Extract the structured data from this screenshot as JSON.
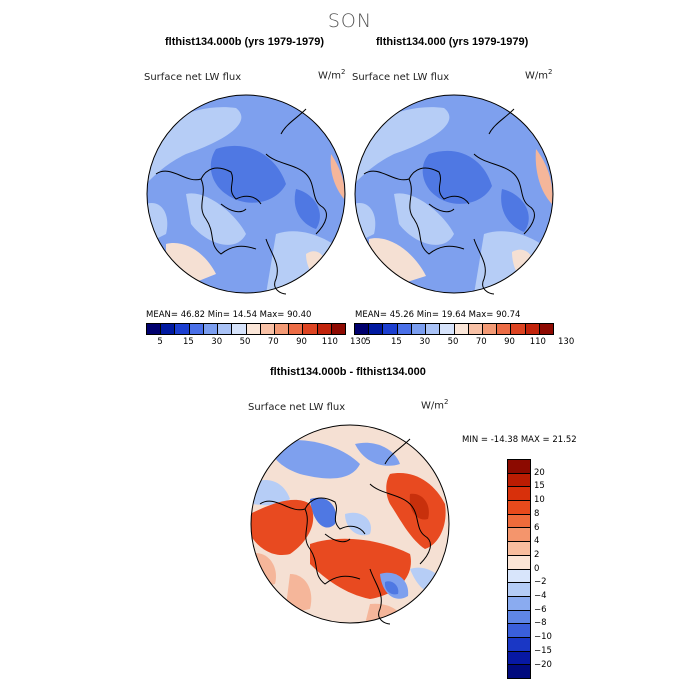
{
  "title": "SON",
  "panels": [
    {
      "title": "flthist134.000b (yrs 1979-1979)",
      "subtitle": "Surface net LW flux",
      "units_base": "W/m",
      "units_exp": "2",
      "stats": "MEAN=  46.82  Min=  14.54  Max=  90.40"
    },
    {
      "title": "flthist134.000 (yrs 1979-1979)",
      "subtitle": "Surface net LW flux",
      "units_base": "W/m",
      "units_exp": "2",
      "stats": "MEAN=  45.26  Min=  19.64  Max=  90.74"
    },
    {
      "title": "flthist134.000b - flthist134.000",
      "subtitle": "Surface net LW flux",
      "units_base": "W/m",
      "units_exp": "2",
      "stats": "MIN = -14.38 MAX =  21.52"
    }
  ],
  "top_colorbar": {
    "labels": [
      "5",
      "15",
      "30",
      "50",
      "70",
      "90",
      "110",
      "130"
    ],
    "colors": [
      "#00006e",
      "#0019a0",
      "#1c3fd0",
      "#4a70e8",
      "#7b9ef0",
      "#a9c2f6",
      "#d6e3fb",
      "#fbe6d8",
      "#f8c1a6",
      "#f39a75",
      "#ec6c45",
      "#dd4422",
      "#c2240c",
      "#8e0a02"
    ]
  },
  "bottom_colorbar": {
    "labels": [
      "20",
      "15",
      "10",
      "8",
      "6",
      "4",
      "2",
      "0",
      "−2",
      "−4",
      "−6",
      "−8",
      "−10",
      "−15",
      "−20"
    ],
    "colors": [
      "#8c0a00",
      "#bb1c02",
      "#d8300b",
      "#e74a1c",
      "#ee6b3b",
      "#f4956c",
      "#f8bd9e",
      "#fbe5d6",
      "#d8e5fb",
      "#b4ccf6",
      "#8aabf0",
      "#5f86e6",
      "#3a5fdb",
      "#1a37c5",
      "#0718a3",
      "#010a7d"
    ]
  },
  "map_colors": {
    "ocean_blue": "#7ea0ee",
    "deep_blue": "#4f78e3",
    "light_blue": "#b6cdf6",
    "pale": "#f5e0d3",
    "warm": "#f5b69a",
    "red": "#e84a20",
    "dark_red": "#c8300c"
  }
}
